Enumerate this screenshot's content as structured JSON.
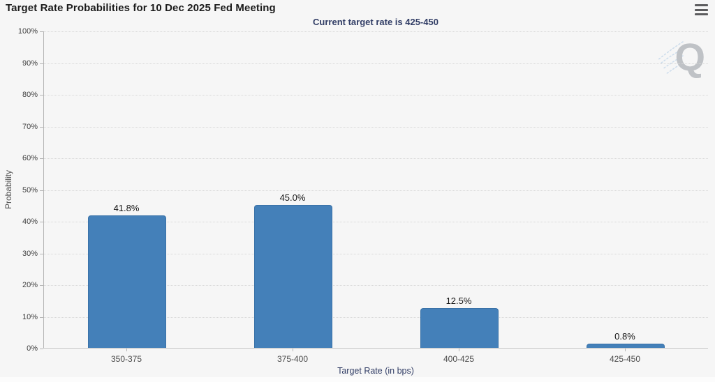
{
  "header": {
    "title": "Target Rate Probabilities for 10 Dec 2025 Fed Meeting",
    "menu_icon": "hamburger-menu-icon"
  },
  "watermark": {
    "letter": "Q"
  },
  "colors": {
    "bar_fill": "#4480b9",
    "bar_border": "#3a72a8",
    "subtitle_navy": "#323e66",
    "background": "#f6f6f6",
    "gridline": "#d8d8d8"
  },
  "chart_data": {
    "type": "bar",
    "title": "Target Rate Probabilities for 10 Dec 2025 Fed Meeting",
    "subtitle": "Current target rate is 425-450",
    "categories": [
      "350-375",
      "375-400",
      "400-425",
      "425-450"
    ],
    "values": [
      41.8,
      45.0,
      12.5,
      0.8
    ],
    "value_labels": [
      "41.8%",
      "45.0%",
      "12.5%",
      "0.8%"
    ],
    "xlabel": "Target Rate (in bps)",
    "ylabel": "Probability",
    "ylim": [
      0,
      100
    ],
    "ytick_step": 10,
    "ytick_suffix": "%",
    "grid": "horizontal-dotted",
    "legend": "none"
  }
}
